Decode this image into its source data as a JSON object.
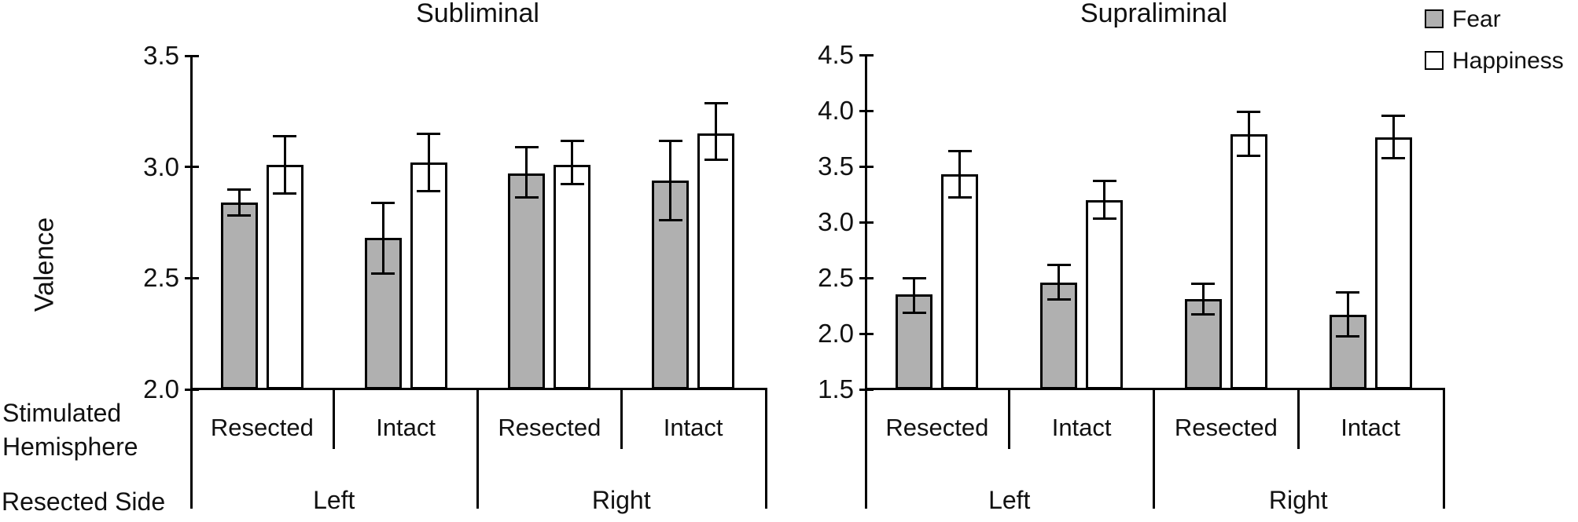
{
  "figure": {
    "y_axis_title": "Valence",
    "row_labels": {
      "stimulated_line1": "Stimulated",
      "stimulated_line2": "Hemisphere",
      "resected_side": "Resected Side"
    },
    "legend": {
      "items": [
        {
          "label": "Fear",
          "fill": "#b0b0b0"
        },
        {
          "label": "Happiness",
          "fill": "#ffffff"
        }
      ]
    },
    "colors": {
      "bar_gray": "#b0b0b0",
      "bar_white": "#ffffff",
      "line_black": "#000000",
      "text": "#111111"
    }
  },
  "chart_data": [
    {
      "type": "bar",
      "title": "Subliminal",
      "ylabel": "Valence",
      "xlabel": "",
      "ylim": [
        2.0,
        3.5
      ],
      "yticks": [
        "3.5",
        "3.0",
        "2.5",
        "2.0"
      ],
      "grid": false,
      "legend_position": "top-right-of-figure",
      "series": [
        {
          "name": "Fear",
          "fill": "#b0b0b0"
        },
        {
          "name": "Happiness",
          "fill": "#ffffff"
        }
      ],
      "subgroup_axis_title": "Stimulated Hemisphere",
      "group_axis_title": "Resected Side",
      "groups": [
        {
          "label": "Left",
          "subgroups": [
            {
              "label": "Resected",
              "bars": [
                {
                  "series": "Fear",
                  "value": 2.84,
                  "err_lo": 2.78,
                  "err_hi": 2.9
                },
                {
                  "series": "Happiness",
                  "value": 3.01,
                  "err_lo": 2.88,
                  "err_hi": 3.14
                }
              ]
            },
            {
              "label": "Intact",
              "bars": [
                {
                  "series": "Fear",
                  "value": 2.68,
                  "err_lo": 2.52,
                  "err_hi": 2.84
                },
                {
                  "series": "Happiness",
                  "value": 3.02,
                  "err_lo": 2.89,
                  "err_hi": 3.15
                }
              ]
            }
          ]
        },
        {
          "label": "Right",
          "subgroups": [
            {
              "label": "Resected",
              "bars": [
                {
                  "series": "Fear",
                  "value": 2.97,
                  "err_lo": 2.86,
                  "err_hi": 3.09
                },
                {
                  "series": "Happiness",
                  "value": 3.01,
                  "err_lo": 2.92,
                  "err_hi": 3.12
                }
              ]
            },
            {
              "label": "Intact",
              "bars": [
                {
                  "series": "Fear",
                  "value": 2.94,
                  "err_lo": 2.76,
                  "err_hi": 3.12
                },
                {
                  "series": "Happiness",
                  "value": 3.15,
                  "err_lo": 3.03,
                  "err_hi": 3.29
                }
              ]
            }
          ]
        }
      ]
    },
    {
      "type": "bar",
      "title": "Supraliminal",
      "ylabel": "",
      "xlabel": "",
      "ylim": [
        1.5,
        4.5
      ],
      "yticks": [
        "4.5",
        "4.0",
        "3.5",
        "3.0",
        "2.5",
        "2.0",
        "1.5"
      ],
      "grid": false,
      "legend_position": "top-right-of-figure",
      "series": [
        {
          "name": "Fear",
          "fill": "#b0b0b0"
        },
        {
          "name": "Happiness",
          "fill": "#ffffff"
        }
      ],
      "subgroup_axis_title": "Stimulated Hemisphere",
      "group_axis_title": "Resected Side",
      "groups": [
        {
          "label": "Left",
          "subgroups": [
            {
              "label": "Resected",
              "bars": [
                {
                  "series": "Fear",
                  "value": 2.35,
                  "err_lo": 2.18,
                  "err_hi": 2.5
                },
                {
                  "series": "Happiness",
                  "value": 3.43,
                  "err_lo": 3.22,
                  "err_hi": 3.64
                }
              ]
            },
            {
              "label": "Intact",
              "bars": [
                {
                  "series": "Fear",
                  "value": 2.46,
                  "err_lo": 2.3,
                  "err_hi": 2.62
                },
                {
                  "series": "Happiness",
                  "value": 3.2,
                  "err_lo": 3.03,
                  "err_hi": 3.37
                }
              ]
            }
          ]
        },
        {
          "label": "Right",
          "subgroups": [
            {
              "label": "Resected",
              "bars": [
                {
                  "series": "Fear",
                  "value": 2.31,
                  "err_lo": 2.17,
                  "err_hi": 2.45
                },
                {
                  "series": "Happiness",
                  "value": 3.79,
                  "err_lo": 3.59,
                  "err_hi": 3.99
                }
              ]
            },
            {
              "label": "Intact",
              "bars": [
                {
                  "series": "Fear",
                  "value": 2.17,
                  "err_lo": 1.97,
                  "err_hi": 2.37
                },
                {
                  "series": "Happiness",
                  "value": 3.76,
                  "err_lo": 3.57,
                  "err_hi": 3.96
                }
              ]
            }
          ]
        }
      ]
    }
  ]
}
